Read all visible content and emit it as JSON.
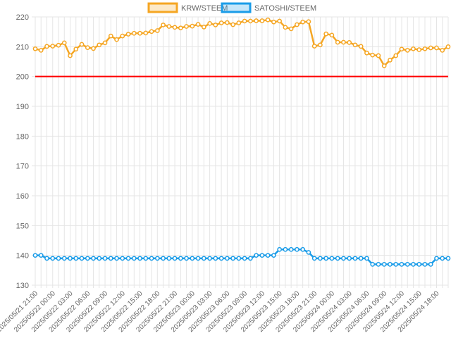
{
  "colors": {
    "krw": "#f5a623",
    "satoshi": "#1a9ce8",
    "reference_line": "#ff0000",
    "grid": "#e5e5e5",
    "axis_text": "#666666"
  },
  "chart_data": {
    "type": "line",
    "title": "",
    "xlabel": "",
    "ylabel": "",
    "ylim": [
      130,
      220
    ],
    "y_ticks": [
      130,
      140,
      150,
      160,
      170,
      180,
      190,
      200,
      210,
      220
    ],
    "grid": true,
    "legend_position": "top-center",
    "reference_line": {
      "y": 200,
      "color": "#ff0000"
    },
    "x_tick_labels": [
      "2025/05/21 21:00",
      "2025/05/22 00:00",
      "2025/05/22 03:00",
      "2025/05/22 06:00",
      "2025/05/22 09:00",
      "2025/05/22 12:00",
      "2025/05/22 15:00",
      "2025/05/22 18:00",
      "2025/05/22 21:00",
      "2025/05/23 00:00",
      "2025/05/23 03:00",
      "2025/05/23 06:00",
      "2025/05/23 09:00",
      "2025/05/23 12:00",
      "2025/05/23 15:00",
      "2025/05/23 18:00",
      "2025/05/23 21:00",
      "2025/05/24 00:00",
      "2025/05/24 03:00",
      "2025/05/24 06:00",
      "2025/05/24 09:00",
      "2025/05/24 12:00",
      "2025/05/24 15:00",
      "2025/05/24 18:00"
    ],
    "series": [
      {
        "name": "KRW/STEEM",
        "color": "#f5a623",
        "values": [
          209.3,
          208.8,
          210.1,
          210.2,
          210.5,
          211.3,
          207.0,
          209.2,
          210.8,
          209.7,
          209.4,
          210.6,
          211.3,
          213.6,
          212.4,
          213.6,
          214.2,
          214.5,
          214.5,
          214.6,
          215.1,
          215.4,
          217.3,
          216.8,
          216.5,
          216.3,
          216.8,
          216.9,
          217.5,
          216.6,
          217.8,
          217.3,
          218.0,
          218.1,
          217.4,
          218.0,
          218.6,
          218.6,
          218.7,
          218.7,
          219.0,
          218.3,
          218.6,
          216.5,
          216.0,
          217.4,
          218.3,
          218.4,
          210.2,
          210.6,
          214.3,
          213.9,
          211.5,
          211.5,
          211.4,
          210.6,
          210.1,
          207.9,
          207.2,
          207.0,
          203.6,
          205.5,
          207.0,
          209.2,
          208.8,
          209.3,
          209.0,
          209.3,
          209.6,
          209.6,
          208.8,
          210.0
        ]
      },
      {
        "name": "SATOSHI/STEEM",
        "color": "#1a9ce8",
        "values": [
          140,
          140,
          139,
          139,
          139,
          139,
          139,
          139,
          139,
          139,
          139,
          139,
          139,
          139,
          139,
          139,
          139,
          139,
          139,
          139,
          139,
          139,
          139,
          139,
          139,
          139,
          139,
          139,
          139,
          139,
          139,
          139,
          139,
          139,
          139,
          139,
          139,
          139,
          140,
          140,
          140,
          140,
          142,
          142,
          142,
          142,
          142,
          141,
          139,
          139,
          139,
          139,
          139,
          139,
          139,
          139,
          139,
          139,
          137,
          137,
          137,
          137,
          137,
          137,
          137,
          137,
          137,
          137,
          137,
          139,
          139,
          139
        ]
      }
    ]
  }
}
